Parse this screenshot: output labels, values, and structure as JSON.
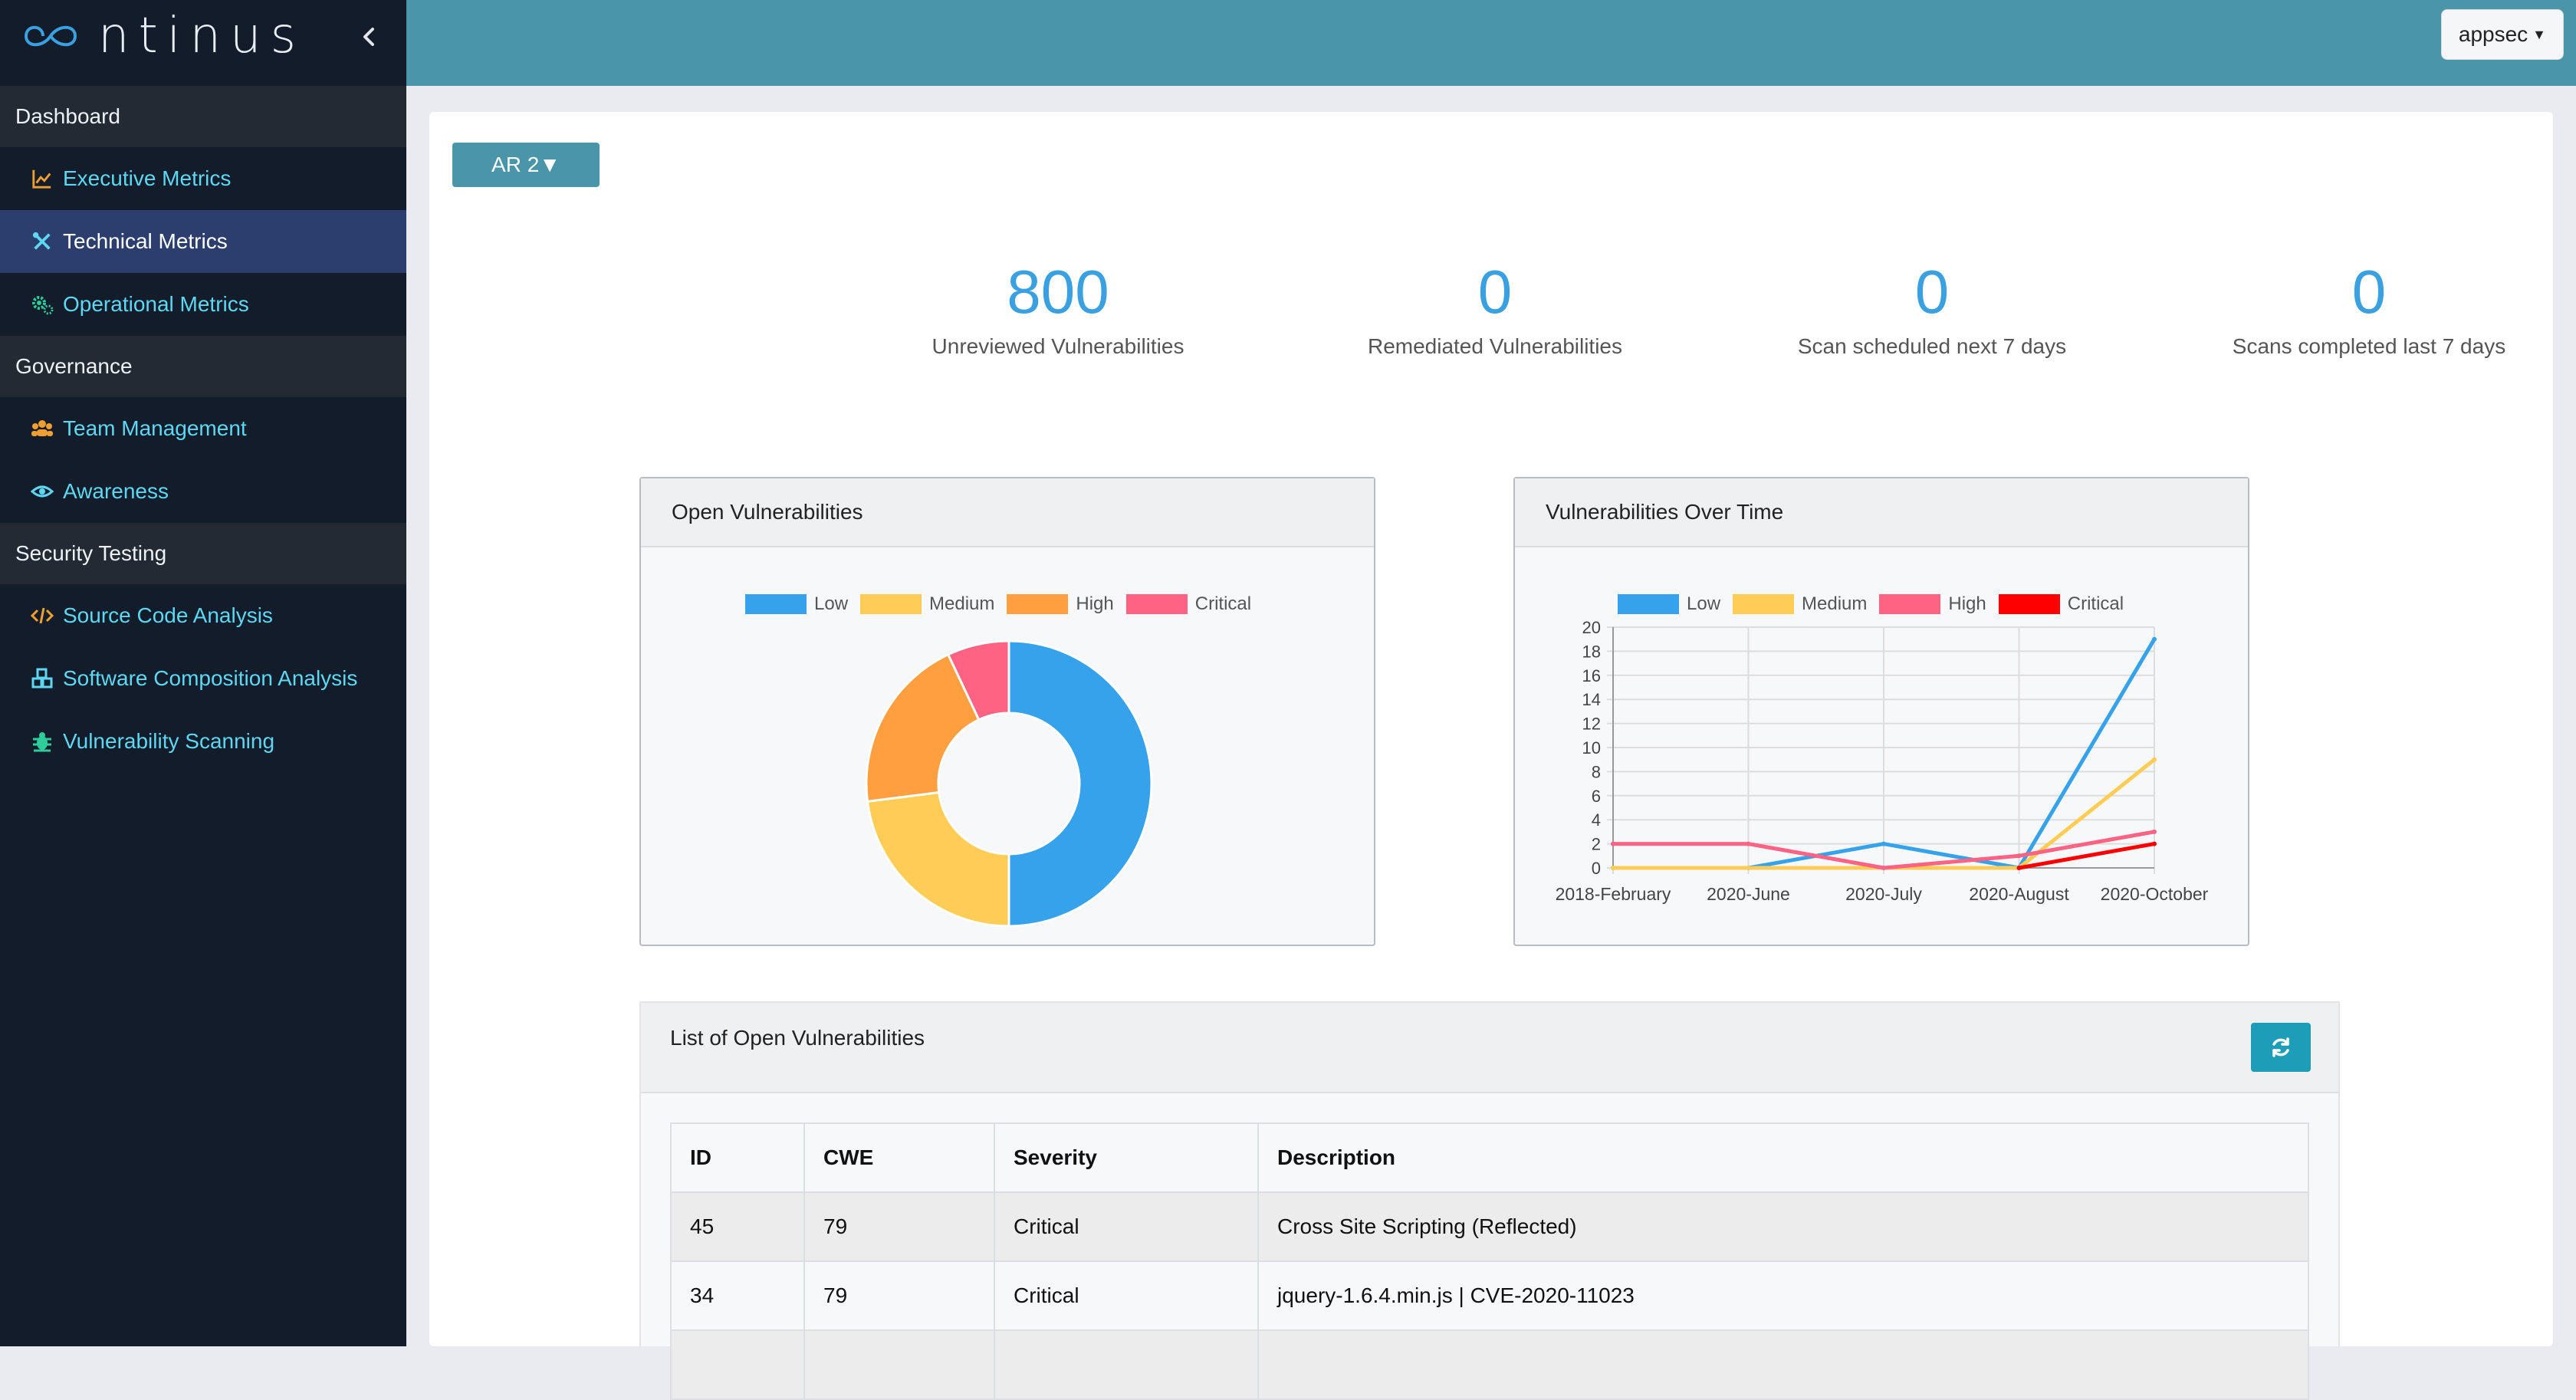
{
  "brand": {
    "name": "ntinus"
  },
  "sidebar": {
    "sections": [
      {
        "label": "Dashboard",
        "items": [
          {
            "label": "Executive Metrics",
            "icon": "chart-line-icon",
            "active": false
          },
          {
            "label": "Technical Metrics",
            "icon": "tools-icon",
            "active": true
          },
          {
            "label": "Operational Metrics",
            "icon": "cogs-icon",
            "active": false
          }
        ]
      },
      {
        "label": "Governance",
        "items": [
          {
            "label": "Team Management",
            "icon": "users-icon",
            "active": false
          },
          {
            "label": "Awareness",
            "icon": "eye-icon",
            "active": false
          }
        ]
      },
      {
        "label": "Security Testing",
        "items": [
          {
            "label": "Source Code Analysis",
            "icon": "code-icon",
            "active": false
          },
          {
            "label": "Software Composition Analysis",
            "icon": "cubes-icon",
            "active": false
          },
          {
            "label": "Vulnerability Scanning",
            "icon": "bug-icon",
            "active": false
          }
        ]
      }
    ]
  },
  "topbar": {
    "user": "appsec"
  },
  "main": {
    "project_dropdown": "AR 2▼",
    "stats": [
      {
        "value": "800",
        "label": "Unreviewed Vulnerabilities"
      },
      {
        "value": "0",
        "label": "Remediated Vulnerabilities"
      },
      {
        "value": "0",
        "label": "Scan scheduled next 7 days"
      },
      {
        "value": "0",
        "label": "Scans completed last 7 days"
      }
    ],
    "list_title": "List of Open Vulnerabilities",
    "table": {
      "headers": [
        "ID",
        "CWE",
        "Severity",
        "Description"
      ],
      "rows": [
        [
          "45",
          "79",
          "Critical",
          "Cross Site Scripting (Reflected)"
        ],
        [
          "34",
          "79",
          "Critical",
          "jquery-1.6.4.min.js | CVE-2020-11023"
        ]
      ]
    }
  },
  "colors": {
    "low": "#36a2eb",
    "medium": "#ffcd56",
    "high": "#ff9f40",
    "critical": "#ff6384",
    "critical_line": "#ff0000"
  },
  "chart_data": [
    {
      "type": "pie",
      "title": "Open Vulnerabilities",
      "labels": [
        "Low",
        "Medium",
        "High",
        "Critical"
      ],
      "values": [
        50,
        23,
        20,
        7
      ],
      "colors": [
        "#36a2eb",
        "#ffcd56",
        "#ff9f40",
        "#ff6384"
      ],
      "legend": "top"
    },
    {
      "type": "line",
      "title": "Vulnerabilities Over Time",
      "categories": [
        "2018-February",
        "2020-June",
        "2020-July",
        "2020-August",
        "2020-October"
      ],
      "series": [
        {
          "name": "Low",
          "color": "#36a2eb",
          "values": [
            0,
            0,
            2,
            0,
            19
          ]
        },
        {
          "name": "Medium",
          "color": "#ffcd56",
          "values": [
            0,
            0,
            0,
            0,
            9
          ]
        },
        {
          "name": "High",
          "color": "#ff6384",
          "values": [
            2,
            2,
            0,
            1,
            3
          ]
        },
        {
          "name": "Critical",
          "color": "#ff0000",
          "values": [
            null,
            null,
            null,
            0,
            2
          ]
        }
      ],
      "ylim": [
        0,
        20
      ],
      "yticks": [
        0,
        2,
        4,
        6,
        8,
        10,
        12,
        14,
        16,
        18,
        20
      ],
      "grid": true,
      "legend": "top"
    }
  ]
}
